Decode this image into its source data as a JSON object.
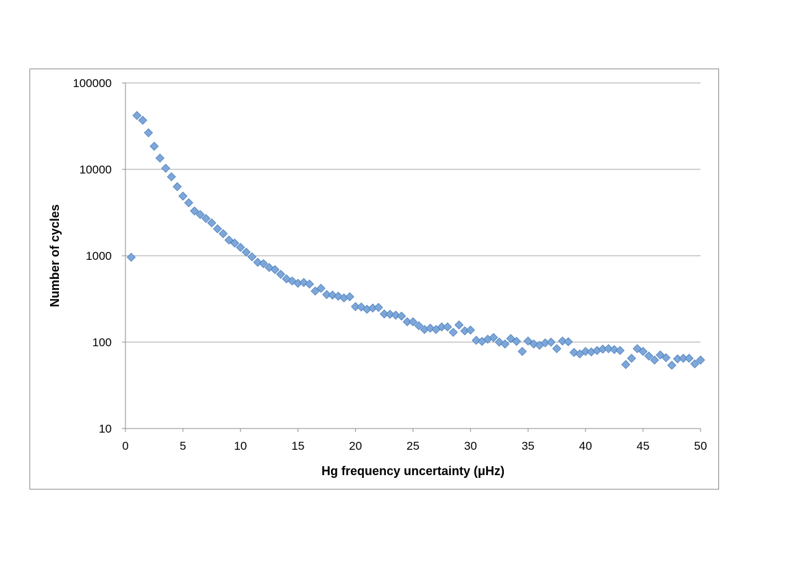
{
  "chart_data": {
    "type": "scatter",
    "title": "",
    "xlabel": "Hg frequency uncertainty (μHz)",
    "ylabel": "Number of cycles",
    "xlim": [
      0,
      50
    ],
    "ylim": [
      10,
      100000
    ],
    "yscale": "log",
    "grid": "horizontal major gridlines",
    "legend": "none",
    "marker": "diamond",
    "colors": {
      "marker_fill": "#7da7d9",
      "marker_stroke": "#4a7ebb",
      "grid": "#a6a6a6",
      "axis": "#8c8c8c"
    },
    "x_ticks": [
      "0",
      "5",
      "10",
      "15",
      "20",
      "25",
      "30",
      "35",
      "40",
      "45",
      "50"
    ],
    "y_ticks": [
      "10",
      "100",
      "1000",
      "10000",
      "100000"
    ],
    "x_tick_values": [
      0,
      5,
      10,
      15,
      20,
      25,
      30,
      35,
      40,
      45,
      50
    ],
    "y_tick_values": [
      10,
      100,
      1000,
      10000,
      100000
    ],
    "points": [
      [
        0.5,
        960
      ],
      [
        1.0,
        42000
      ],
      [
        1.5,
        37000
      ],
      [
        2.0,
        26500
      ],
      [
        2.5,
        18500
      ],
      [
        3.0,
        13500
      ],
      [
        3.5,
        10300
      ],
      [
        4.0,
        8200
      ],
      [
        4.5,
        6300
      ],
      [
        5.0,
        4900
      ],
      [
        5.5,
        4100
      ],
      [
        6.0,
        3300
      ],
      [
        6.5,
        3000
      ],
      [
        7.0,
        2700
      ],
      [
        7.5,
        2400
      ],
      [
        8.0,
        2050
      ],
      [
        8.5,
        1800
      ],
      [
        9.0,
        1520
      ],
      [
        9.5,
        1400
      ],
      [
        10.0,
        1250
      ],
      [
        10.5,
        1100
      ],
      [
        11.0,
        970
      ],
      [
        11.5,
        840
      ],
      [
        12.0,
        810
      ],
      [
        12.5,
        730
      ],
      [
        13.0,
        690
      ],
      [
        13.5,
        610
      ],
      [
        14.0,
        540
      ],
      [
        14.5,
        510
      ],
      [
        15.0,
        480
      ],
      [
        15.5,
        490
      ],
      [
        16.0,
        470
      ],
      [
        16.5,
        390
      ],
      [
        17.0,
        420
      ],
      [
        17.5,
        355
      ],
      [
        18.0,
        350
      ],
      [
        18.5,
        340
      ],
      [
        19.0,
        325
      ],
      [
        19.5,
        335
      ],
      [
        20.0,
        258
      ],
      [
        20.5,
        255
      ],
      [
        21.0,
        240
      ],
      [
        21.5,
        248
      ],
      [
        22.0,
        252
      ],
      [
        22.5,
        212
      ],
      [
        23.0,
        210
      ],
      [
        23.5,
        205
      ],
      [
        24.0,
        200
      ],
      [
        24.5,
        172
      ],
      [
        25.0,
        172
      ],
      [
        25.5,
        155
      ],
      [
        26.0,
        140
      ],
      [
        26.5,
        145
      ],
      [
        27.0,
        140
      ],
      [
        27.5,
        150
      ],
      [
        28.0,
        150
      ],
      [
        28.5,
        130
      ],
      [
        29.0,
        158
      ],
      [
        29.5,
        135
      ],
      [
        30.0,
        138
      ],
      [
        30.5,
        105
      ],
      [
        31.0,
        102
      ],
      [
        31.5,
        108
      ],
      [
        32.0,
        113
      ],
      [
        32.5,
        100
      ],
      [
        33.0,
        95
      ],
      [
        33.5,
        110
      ],
      [
        34.0,
        102
      ],
      [
        34.5,
        78
      ],
      [
        35.0,
        103
      ],
      [
        35.5,
        95
      ],
      [
        36.0,
        92
      ],
      [
        36.5,
        98
      ],
      [
        37.0,
        100
      ],
      [
        37.5,
        84
      ],
      [
        38.0,
        103
      ],
      [
        38.5,
        101
      ],
      [
        39.0,
        76
      ],
      [
        39.5,
        73
      ],
      [
        40.0,
        78
      ],
      [
        40.5,
        77
      ],
      [
        41.0,
        80
      ],
      [
        41.5,
        83
      ],
      [
        42.0,
        84
      ],
      [
        42.5,
        82
      ],
      [
        43.0,
        80
      ],
      [
        43.5,
        55
      ],
      [
        44.0,
        65
      ],
      [
        44.5,
        84
      ],
      [
        45.0,
        78
      ],
      [
        45.5,
        69
      ],
      [
        46.0,
        62
      ],
      [
        46.5,
        71
      ],
      [
        47.0,
        66
      ],
      [
        47.5,
        54
      ],
      [
        48.0,
        64
      ],
      [
        48.5,
        65
      ],
      [
        49.0,
        65
      ],
      [
        49.5,
        56
      ],
      [
        50.0,
        62
      ]
    ]
  }
}
